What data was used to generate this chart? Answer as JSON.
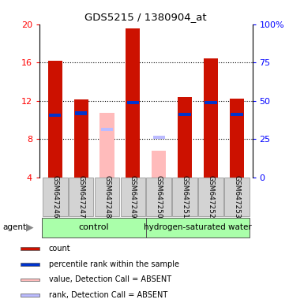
{
  "title": "GDS5215 / 1380904_at",
  "samples": [
    "GSM647246",
    "GSM647247",
    "GSM647248",
    "GSM647249",
    "GSM647250",
    "GSM647251",
    "GSM647252",
    "GSM647253"
  ],
  "count_values": [
    16.2,
    12.1,
    null,
    19.6,
    null,
    12.4,
    16.4,
    12.2
  ],
  "rank_values": [
    10.5,
    10.7,
    null,
    11.8,
    null,
    10.6,
    11.8,
    10.6
  ],
  "absent_value": [
    null,
    null,
    10.7,
    null,
    6.8,
    null,
    null,
    null
  ],
  "absent_rank": [
    null,
    null,
    9.0,
    null,
    8.2,
    null,
    null,
    null
  ],
  "ylim": [
    4,
    20
  ],
  "yticks_left": [
    4,
    8,
    12,
    16,
    20
  ],
  "ytick_labels_left": [
    "4",
    "8",
    "12",
    "16",
    "20"
  ],
  "ytick_labels_right": [
    "0",
    "25",
    "50",
    "75",
    "100%"
  ],
  "right_tick_vals": [
    4,
    8,
    12,
    16,
    20
  ],
  "bar_color_red": "#cc1100",
  "bar_color_blue": "#0033cc",
  "bar_color_pink": "#ffbbbb",
  "bar_color_lightblue": "#bbbbff",
  "legend_items": [
    {
      "color": "#cc1100",
      "label": "count"
    },
    {
      "color": "#0033cc",
      "label": "percentile rank within the sample"
    },
    {
      "color": "#ffbbbb",
      "label": "value, Detection Call = ABSENT"
    },
    {
      "color": "#bbbbff",
      "label": "rank, Detection Call = ABSENT"
    }
  ]
}
